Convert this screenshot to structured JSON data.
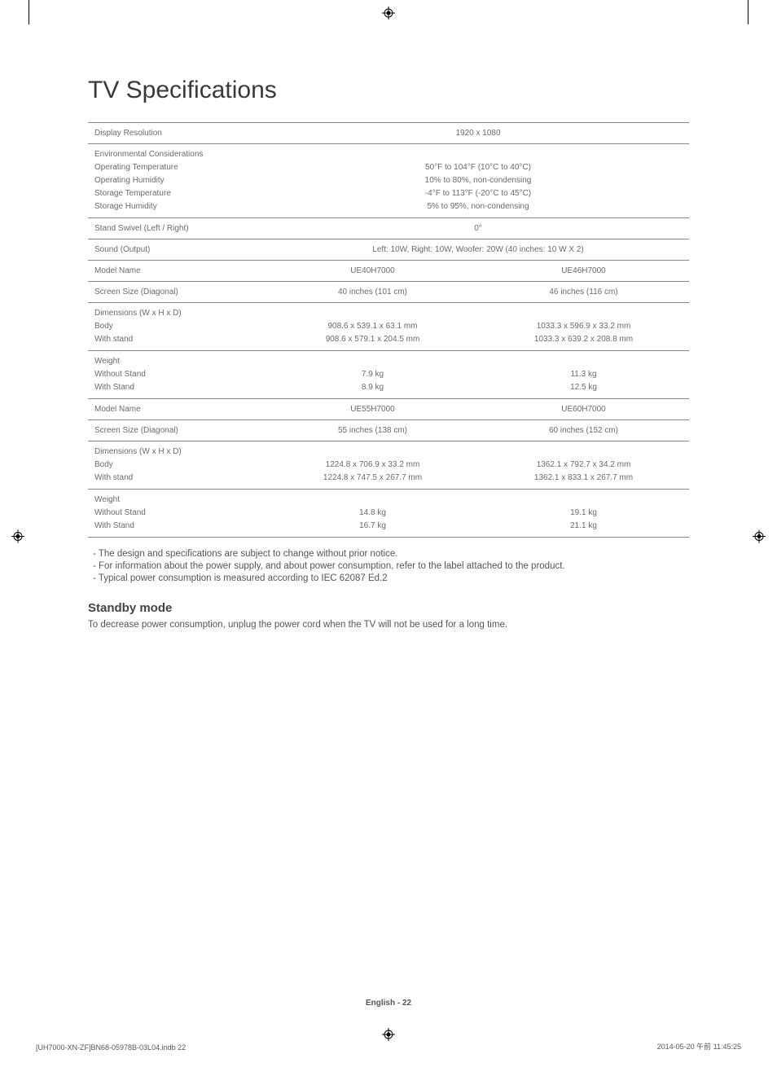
{
  "title": "TV Specifications",
  "table": {
    "rows": [
      {
        "label": "Display Resolution",
        "full": "1920 x 1080"
      },
      {
        "label": "Environmental Considerations\nOperating Temperature\nOperating Humidity\nStorage Temperature\nStorage Humidity",
        "full": "50°F to 104°F (10°C to 40°C)\n10% to 80%, non-condensing\n-4°F to 113°F (-20°C to 45°C)\n5% to 95%, non-condensing"
      },
      {
        "label": "Stand Swivel (Left / Right)",
        "full": "0°"
      },
      {
        "label": "Sound (Output)",
        "full": "Left: 10W, Right: 10W, Woofer: 20W (40 inches: 10 W X 2)"
      },
      {
        "label": "Model Name",
        "left": "UE40H7000",
        "right": "UE46H7000"
      },
      {
        "label": "Screen Size (Diagonal)",
        "left": "40 inches (101 cm)",
        "right": "46 inches (116 cm)"
      },
      {
        "label": "Dimensions (W x H x D)\nBody\nWith stand",
        "left": "908.6 x 539.1 x 63.1 mm\n908.6 x 579.1 x 204.5 mm",
        "right": "1033.3 x 596.9 x 33.2 mm\n1033.3 x 639.2 x 208.8 mm",
        "padtop": true
      },
      {
        "label": "Weight\nWithout Stand\nWith Stand",
        "left": "7.9 kg\n8.9 kg",
        "right": "11.3 kg\n12.5 kg",
        "padtop": true
      },
      {
        "label": "Model Name",
        "left": "UE55H7000",
        "right": "UE60H7000"
      },
      {
        "label": "Screen Size (Diagonal)",
        "left": "55 inches (138 cm)",
        "right": "60 inches (152 cm)"
      },
      {
        "label": "Dimensions (W x H x D)\nBody\nWith stand",
        "left": "1224.8 x 706.9 x 33.2 mm\n1224.8 x 747.5 x 267.7 mm",
        "right": "1362.1 x 792.7 x 34.2 mm\n1362.1 x 833.1 x 267.7 mm",
        "padtop": true
      },
      {
        "label": "Weight\nWithout Stand\nWith Stand",
        "left": "14.8 kg\n16.7 kg",
        "right": "19.1 kg\n21.1 kg",
        "padtop": true
      }
    ]
  },
  "notes": [
    "The design and specifications are subject to change without prior notice.",
    "For information about the power supply, and about power consumption, refer to the label attached to the product.",
    "Typical power consumption is measured according to IEC 62087 Ed.2"
  ],
  "subheading": "Standby mode",
  "subtext": "To decrease power consumption, unplug the power cord when the TV will not be used for a long time.",
  "footer": {
    "center": "English - 22",
    "left": "[UH7000-XN-ZF]BN68-05978B-03L04.indb   22",
    "right": "2014-05-20   午前 11:45:25"
  }
}
